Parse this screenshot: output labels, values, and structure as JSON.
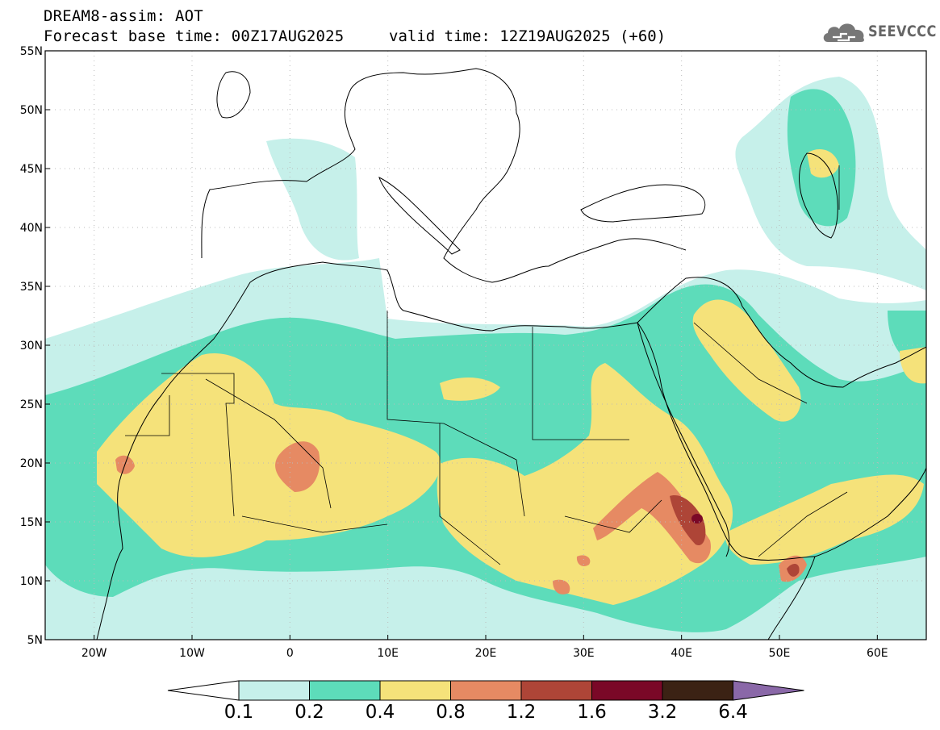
{
  "header": {
    "title_line1": "DREAM8-assim: AOT",
    "title_line2": "Forecast base time: 00Z17AUG2025",
    "valid_time": "valid time: 12Z19AUG2025 (+60)"
  },
  "logo": {
    "text": "SEEVCCC",
    "icon": "cloud-icon"
  },
  "map": {
    "lon_range": [
      -25,
      65
    ],
    "lat_range": [
      5,
      55
    ],
    "grid": "dotted",
    "lat_ticks": [
      "55N",
      "50N",
      "45N",
      "40N",
      "35N",
      "30N",
      "25N",
      "20N",
      "15N",
      "10N",
      "5N"
    ],
    "lon_ticks": [
      "20W",
      "10W",
      "0",
      "10E",
      "20E",
      "30E",
      "40E",
      "50E",
      "60E"
    ]
  },
  "colorbar": {
    "labels": [
      "0.1",
      "0.2",
      "0.4",
      "0.8",
      "1.2",
      "1.6",
      "3.2",
      "6.4"
    ],
    "colors": [
      "#c6f0ea",
      "#5ddcba",
      "#f5e27a",
      "#e68a63",
      "#ae4537",
      "#7a0827",
      "#3b2214",
      "#8a68a8"
    ],
    "under_color": "#ffffff"
  },
  "colors": {
    "c1": "#c6f0ea",
    "c2": "#5ddcba",
    "c3": "#f5e27a",
    "c4": "#e68a63",
    "c5": "#ae4537",
    "c6": "#7a0827"
  }
}
